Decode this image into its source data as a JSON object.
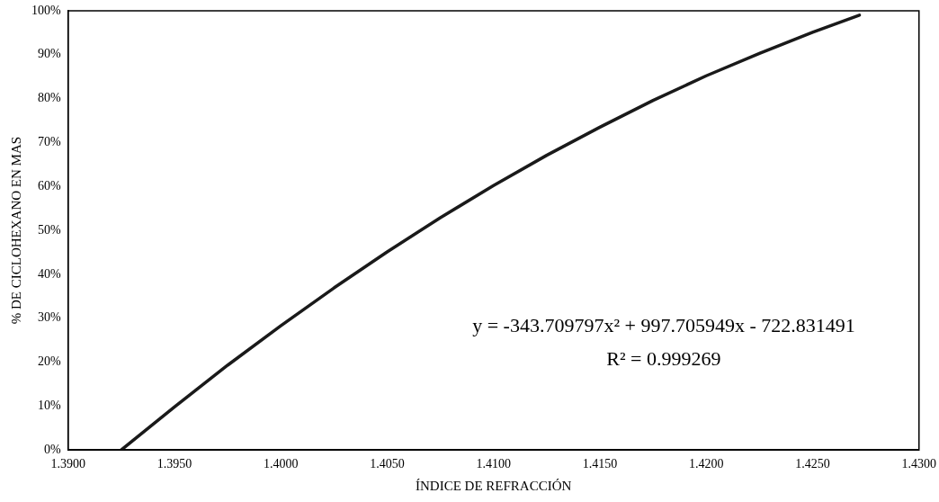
{
  "chart_data": {
    "type": "line",
    "xlabel": "ÍNDICE DE REFRACCIÓN",
    "ylabel": "% DE CICLOHEXANO EN MAS",
    "x": [
      1.3925,
      1.395,
      1.3975,
      1.4,
      1.4025,
      1.405,
      1.4075,
      1.41,
      1.4125,
      1.415,
      1.4175,
      1.42,
      1.4225,
      1.425,
      1.4272
    ],
    "series": [
      {
        "color": "#1a1a1a",
        "values": [
          0,
          9.8,
          19.3,
          28.3,
          36.9,
          45.1,
          52.9,
          60.2,
          67.1,
          73.5,
          79.6,
          85.2,
          90.3,
          95.1,
          99
        ]
      }
    ],
    "xlim": [
      1.39,
      1.43
    ],
    "xticks": [
      {
        "value": 1.39,
        "label": "1.3900"
      },
      {
        "value": 1.395,
        "label": "1.3950"
      },
      {
        "value": 1.4,
        "label": "1.4000"
      },
      {
        "value": 1.405,
        "label": "1.4050"
      },
      {
        "value": 1.41,
        "label": "1.4100"
      },
      {
        "value": 1.415,
        "label": "1.4150"
      },
      {
        "value": 1.42,
        "label": "1.4200"
      },
      {
        "value": 1.425,
        "label": "1.4250"
      },
      {
        "value": 1.43,
        "label": "1.4300"
      }
    ],
    "ylim": [
      0,
      100
    ],
    "yticks": [
      {
        "value": 0,
        "label": "0%"
      },
      {
        "value": 10,
        "label": "10%"
      },
      {
        "value": 20,
        "label": "20%"
      },
      {
        "value": 30,
        "label": "30%"
      },
      {
        "value": 40,
        "label": "40%"
      },
      {
        "value": 50,
        "label": "50%"
      },
      {
        "value": 60,
        "label": "60%"
      },
      {
        "value": 70,
        "label": "70%"
      },
      {
        "value": 80,
        "label": "80%"
      },
      {
        "value": 90,
        "label": "90%"
      },
      {
        "value": 100,
        "label": "100%"
      }
    ],
    "annotations": [
      "y = -343.709797x² + 997.705949x - 722.831491",
      "R² = 0.999269"
    ],
    "grid": false,
    "legend": false,
    "marker": "none",
    "line_style": "solid"
  }
}
